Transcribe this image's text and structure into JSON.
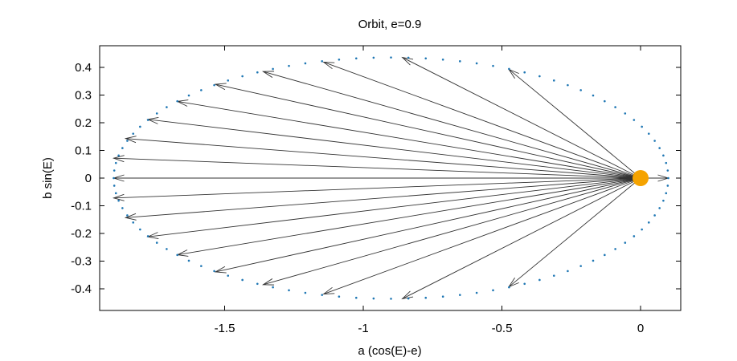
{
  "chart_data": {
    "type": "scatter",
    "title": "Orbit, e=0.9",
    "xlabel": "a (cos(E)-e)",
    "ylabel": "b sin(E)",
    "xlim": [
      -1.95,
      0.15
    ],
    "ylim": [
      -0.48,
      0.48
    ],
    "grid": false,
    "legend": "none",
    "x_ticks": [
      {
        "value": -1.5,
        "label": "-1.5"
      },
      {
        "value": -1,
        "label": "-1"
      },
      {
        "value": -0.5,
        "label": "-0.5"
      },
      {
        "value": 0,
        "label": "0"
      }
    ],
    "y_ticks": [
      {
        "value": 0.4,
        "label": "0.4"
      },
      {
        "value": 0.3,
        "label": "0.3"
      },
      {
        "value": 0.2,
        "label": "0.2"
      },
      {
        "value": 0.1,
        "label": "0.1"
      },
      {
        "value": 0,
        "label": "0"
      },
      {
        "value": -0.1,
        "label": "-0.1"
      },
      {
        "value": -0.2,
        "label": "-0.2"
      },
      {
        "value": -0.3,
        "label": "-0.3"
      },
      {
        "value": -0.4,
        "label": "-0.4"
      }
    ],
    "orbit": {
      "semi_major_axis": 1.0,
      "eccentricity": 0.9,
      "semi_minor_axis": 0.4359,
      "dot_count": 100,
      "color": "#1f77b4"
    },
    "focus": {
      "x": 0,
      "y": 0,
      "color": "#f5a300"
    },
    "arrows": [
      {
        "x": 0.1,
        "y": 0.0
      },
      {
        "x": -0.475,
        "y": 0.393
      },
      {
        "x": -0.859,
        "y": 0.436
      },
      {
        "x": -1.143,
        "y": 0.419
      },
      {
        "x": -1.361,
        "y": 0.385
      },
      {
        "x": -1.533,
        "y": 0.339
      },
      {
        "x": -1.67,
        "y": 0.277
      },
      {
        "x": -1.777,
        "y": 0.212
      },
      {
        "x": -1.857,
        "y": 0.143
      },
      {
        "x": -1.9,
        "y": 0.072
      },
      {
        "x": -1.9,
        "y": 0.0
      },
      {
        "x": -1.9,
        "y": -0.072
      },
      {
        "x": -1.857,
        "y": -0.143
      },
      {
        "x": -1.777,
        "y": -0.212
      },
      {
        "x": -1.67,
        "y": -0.277
      },
      {
        "x": -1.533,
        "y": -0.339
      },
      {
        "x": -1.361,
        "y": -0.385
      },
      {
        "x": -1.143,
        "y": -0.419
      },
      {
        "x": -0.859,
        "y": -0.436
      },
      {
        "x": -0.475,
        "y": -0.393
      }
    ],
    "arrow_color": "#333333"
  }
}
